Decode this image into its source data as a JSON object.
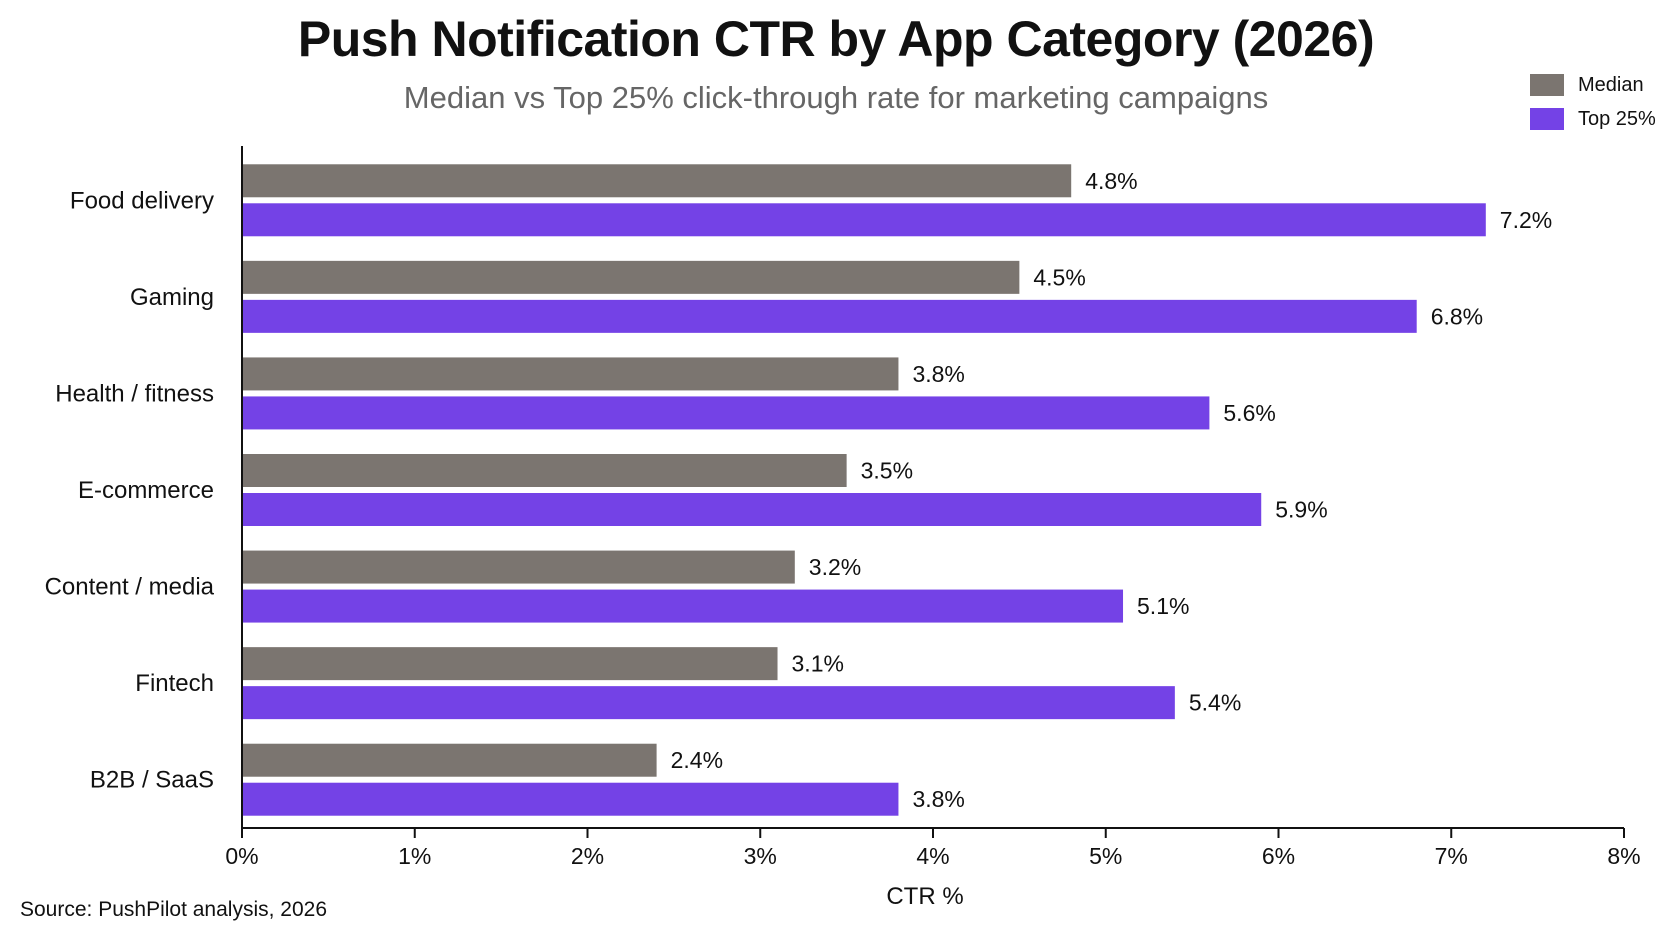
{
  "title": "Push Notification CTR by App Category (2026)",
  "subtitle": "Median vs Top 25% click-through rate for marketing campaigns",
  "source": "Source: PushPilot analysis, 2026",
  "colors": {
    "median": "#7b7570",
    "top25": "#7442e6",
    "axis": "#111111"
  },
  "chart_data": {
    "type": "bar",
    "orientation": "horizontal",
    "categories": [
      "Food delivery",
      "Gaming",
      "Health / fitness",
      "E-commerce",
      "Content / media",
      "Fintech",
      "B2B / SaaS"
    ],
    "series": [
      {
        "name": "Median",
        "values": [
          4.8,
          4.5,
          3.8,
          3.5,
          3.2,
          3.1,
          2.4
        ],
        "labels": [
          "4.8%",
          "4.5%",
          "3.8%",
          "3.5%",
          "3.2%",
          "3.1%",
          "2.4%"
        ]
      },
      {
        "name": "Top 25%",
        "values": [
          7.2,
          6.8,
          5.6,
          5.9,
          5.1,
          5.4,
          3.8
        ],
        "labels": [
          "7.2%",
          "6.8%",
          "5.6%",
          "5.9%",
          "5.1%",
          "5.4%",
          "3.8%"
        ]
      }
    ],
    "xlabel": "CTR %",
    "ylabel": "",
    "xlim": [
      0,
      8
    ],
    "xticks": [
      0,
      1,
      2,
      3,
      4,
      5,
      6,
      7,
      8
    ],
    "xtick_labels": [
      "0%",
      "1%",
      "2%",
      "3%",
      "4%",
      "5%",
      "6%",
      "7%",
      "8%"
    ],
    "grid": false,
    "legend_position": "top-right"
  }
}
